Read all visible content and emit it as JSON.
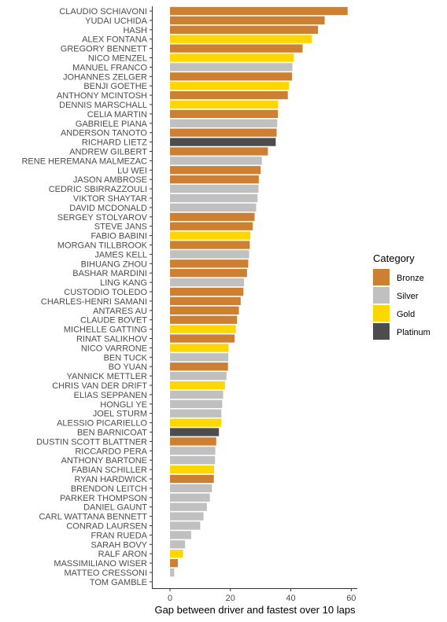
{
  "chart_data": {
    "type": "bar",
    "orientation": "horizontal",
    "xlabel": "Gap between driver and fastest over 10 laps",
    "ylabel": "",
    "xlim": [
      -6,
      62
    ],
    "xticks": [
      "0",
      "20",
      "40",
      "60"
    ],
    "grid": false,
    "legend": {
      "title": "Category",
      "placement": "right",
      "entries": [
        {
          "label": "Bronze",
          "color": "#CD7F32"
        },
        {
          "label": "Silver",
          "color": "#C0C0C0"
        },
        {
          "label": "Gold",
          "color": "#FFD700"
        },
        {
          "label": "Platinum",
          "color": "#4D4D4D"
        }
      ]
    },
    "colors": {
      "Bronze": "#CD7F32",
      "Silver": "#C0C0C0",
      "Gold": "#FFD700",
      "Platinum": "#4D4D4D"
    },
    "bars": [
      {
        "driver": "CLAUDIO SCHIAVONI",
        "value": 58.8,
        "category": "Bronze"
      },
      {
        "driver": "YUDAI UCHIDA",
        "value": 51.2,
        "category": "Bronze"
      },
      {
        "driver": "HASH",
        "value": 49.0,
        "category": "Bronze"
      },
      {
        "driver": "ALEX FONTANA",
        "value": 47.0,
        "category": "Gold"
      },
      {
        "driver": "GREGORY BENNETT",
        "value": 43.9,
        "category": "Bronze"
      },
      {
        "driver": "NICO MENZEL",
        "value": 41.0,
        "category": "Gold"
      },
      {
        "driver": "MANUEL FRANCO",
        "value": 40.5,
        "category": "Silver"
      },
      {
        "driver": "JOHANNES ZELGER",
        "value": 40.4,
        "category": "Bronze"
      },
      {
        "driver": "BENJI GOETHE",
        "value": 39.4,
        "category": "Gold"
      },
      {
        "driver": "ANTHONY MCINTOSH",
        "value": 39.0,
        "category": "Bronze"
      },
      {
        "driver": "DENNIS MARSCHALL",
        "value": 35.8,
        "category": "Gold"
      },
      {
        "driver": "CELIA MARTIN",
        "value": 35.7,
        "category": "Bronze"
      },
      {
        "driver": "GABRIELE PIANA",
        "value": 35.5,
        "category": "Silver"
      },
      {
        "driver": "ANDERSON TANOTO",
        "value": 35.3,
        "category": "Bronze"
      },
      {
        "driver": "RICHARD LIETZ",
        "value": 35.0,
        "category": "Platinum"
      },
      {
        "driver": "ANDREW GILBERT",
        "value": 32.4,
        "category": "Bronze"
      },
      {
        "driver": "RENE HEREMANA MALMEZAC",
        "value": 30.4,
        "category": "Silver"
      },
      {
        "driver": "LU WEI",
        "value": 30.0,
        "category": "Bronze"
      },
      {
        "driver": "JASON AMBROSE",
        "value": 29.4,
        "category": "Bronze"
      },
      {
        "driver": "CEDRIC SBIRRAZZOULI",
        "value": 29.3,
        "category": "Silver"
      },
      {
        "driver": "VIKTOR SHAYTAR",
        "value": 29.0,
        "category": "Silver"
      },
      {
        "driver": "DAVID MCDONALD",
        "value": 28.5,
        "category": "Silver"
      },
      {
        "driver": "SERGEY STOLYAROV",
        "value": 28.0,
        "category": "Bronze"
      },
      {
        "driver": "STEVE JANS",
        "value": 27.4,
        "category": "Bronze"
      },
      {
        "driver": "FABIO BABINI",
        "value": 26.6,
        "category": "Gold"
      },
      {
        "driver": "MORGAN TILLBROOK",
        "value": 26.4,
        "category": "Bronze"
      },
      {
        "driver": "JAMES KELL",
        "value": 26.2,
        "category": "Silver"
      },
      {
        "driver": "BIHUANG ZHOU",
        "value": 25.9,
        "category": "Bronze"
      },
      {
        "driver": "BASHAR MARDINI",
        "value": 25.5,
        "category": "Bronze"
      },
      {
        "driver": "LING KANG",
        "value": 24.5,
        "category": "Silver"
      },
      {
        "driver": "CUSTODIO TOLEDO",
        "value": 24.3,
        "category": "Bronze"
      },
      {
        "driver": "CHARLES-HENRI SAMANI",
        "value": 23.4,
        "category": "Bronze"
      },
      {
        "driver": "ANTARES AU",
        "value": 22.8,
        "category": "Bronze"
      },
      {
        "driver": "CLAUDE BOVET",
        "value": 22.2,
        "category": "Bronze"
      },
      {
        "driver": "MICHELLE GATTING",
        "value": 21.8,
        "category": "Gold"
      },
      {
        "driver": "RINAT SALIKHOV",
        "value": 21.4,
        "category": "Bronze"
      },
      {
        "driver": "NICO VARRONE",
        "value": 19.4,
        "category": "Gold"
      },
      {
        "driver": "BEN TUCK",
        "value": 19.3,
        "category": "Silver"
      },
      {
        "driver": "BO YUAN",
        "value": 19.2,
        "category": "Bronze"
      },
      {
        "driver": "YANNICK METTLER",
        "value": 18.7,
        "category": "Silver"
      },
      {
        "driver": "CHRIS VAN DER DRIFT",
        "value": 18.2,
        "category": "Gold"
      },
      {
        "driver": "ELIAS SEPPANEN",
        "value": 17.6,
        "category": "Silver"
      },
      {
        "driver": "HONGLI YE",
        "value": 17.3,
        "category": "Silver"
      },
      {
        "driver": "JOEL STURM",
        "value": 17.0,
        "category": "Silver"
      },
      {
        "driver": "ALESSIO PICARIELLO",
        "value": 17.0,
        "category": "Gold"
      },
      {
        "driver": "BEN BARNICOAT",
        "value": 16.2,
        "category": "Platinum"
      },
      {
        "driver": "DUSTIN SCOTT BLATTNER",
        "value": 15.3,
        "category": "Bronze"
      },
      {
        "driver": "RICCARDO PERA",
        "value": 15.0,
        "category": "Silver"
      },
      {
        "driver": "ANTHONY BARTONE",
        "value": 14.9,
        "category": "Silver"
      },
      {
        "driver": "FABIAN SCHILLER",
        "value": 14.6,
        "category": "Gold"
      },
      {
        "driver": "RYAN HARDWICK",
        "value": 14.5,
        "category": "Bronze"
      },
      {
        "driver": "BRENDON LEITCH",
        "value": 13.9,
        "category": "Silver"
      },
      {
        "driver": "PARKER THOMPSON",
        "value": 13.2,
        "category": "Silver"
      },
      {
        "driver": "DANIEL GAUNT",
        "value": 12.2,
        "category": "Silver"
      },
      {
        "driver": "CARL WATTANA BENNETT",
        "value": 11.1,
        "category": "Silver"
      },
      {
        "driver": "CONRAD LAURSEN",
        "value": 10.0,
        "category": "Silver"
      },
      {
        "driver": "FRAN RUEDA",
        "value": 7.0,
        "category": "Silver"
      },
      {
        "driver": "SARAH BOVY",
        "value": 5.0,
        "category": "Silver"
      },
      {
        "driver": "RALF ARON",
        "value": 4.3,
        "category": "Gold"
      },
      {
        "driver": "MASSIMILIANO WISER",
        "value": 2.6,
        "category": "Bronze"
      },
      {
        "driver": "MATTEO CRESSONI",
        "value": 1.4,
        "category": "Silver"
      },
      {
        "driver": "TOM GAMBLE",
        "value": 0.0,
        "category": "Silver"
      }
    ]
  }
}
